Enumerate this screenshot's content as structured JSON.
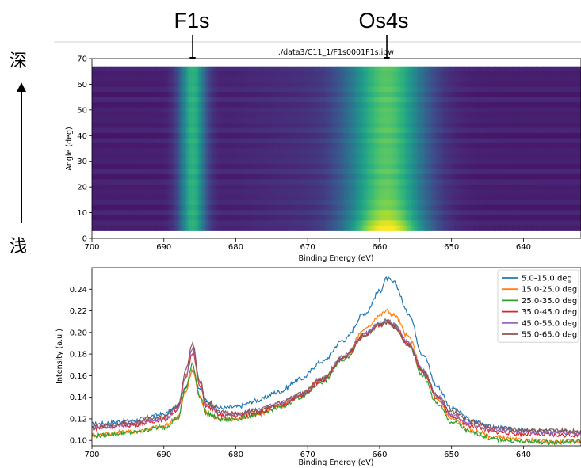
{
  "annotations": {
    "peak_labels": [
      {
        "text": "F1s",
        "energy": 686
      },
      {
        "text": "Os4s",
        "energy": 659
      }
    ],
    "depth_top": "深",
    "depth_bottom": "浅"
  },
  "chart_data": [
    {
      "type": "heatmap",
      "title": "./data3/C11_1/F1s0001F1s.ibw",
      "xlabel": "Binding Energy (eV)",
      "ylabel": "Angle (deg)",
      "xlim": [
        700,
        632
      ],
      "ylim": [
        0,
        70
      ],
      "x_ticks": [
        700,
        690,
        680,
        670,
        660,
        650,
        640
      ],
      "y_ticks": [
        0,
        10,
        20,
        30,
        40,
        50,
        60,
        70
      ],
      "data_y_range": [
        3,
        67
      ],
      "colormap": "viridis",
      "peaks": [
        {
          "energy": 686,
          "width": 1.3,
          "intensity": 0.55
        },
        {
          "energy": 659,
          "width": 3.8,
          "intensity": 0.62
        }
      ]
    },
    {
      "type": "line",
      "xlabel": "Binding Energy (eV)",
      "ylabel": "Intensity (a.u.)",
      "xlim": [
        700,
        632
      ],
      "ylim": [
        0.095,
        0.26
      ],
      "x_ticks": [
        700,
        690,
        680,
        670,
        660,
        650,
        640
      ],
      "y_ticks": [
        0.1,
        0.12,
        0.14,
        0.16,
        0.18,
        0.2,
        0.22,
        0.24
      ],
      "legend_position": "top-right",
      "series": [
        {
          "name": "5.0-15.0 deg",
          "color": "#1f77b4",
          "x": [
            700,
            695,
            690,
            688,
            687,
            686,
            685,
            684,
            682,
            680,
            677,
            674,
            671,
            668,
            665,
            662,
            660,
            659,
            658,
            656,
            654,
            652,
            650,
            647,
            644,
            640,
            636,
            632
          ],
          "y": [
            0.115,
            0.118,
            0.124,
            0.132,
            0.15,
            0.165,
            0.148,
            0.136,
            0.13,
            0.131,
            0.137,
            0.145,
            0.157,
            0.173,
            0.193,
            0.218,
            0.238,
            0.25,
            0.246,
            0.218,
            0.18,
            0.15,
            0.13,
            0.118,
            0.112,
            0.109,
            0.108,
            0.108
          ]
        },
        {
          "name": "15.0-25.0 deg",
          "color": "#ff7f0e",
          "x": [
            700,
            695,
            690,
            688,
            687,
            686,
            685,
            684,
            682,
            680,
            677,
            674,
            671,
            668,
            665,
            662,
            660,
            659,
            658,
            656,
            654,
            652,
            650,
            647,
            644,
            640,
            636,
            632
          ],
          "y": [
            0.105,
            0.108,
            0.113,
            0.122,
            0.145,
            0.165,
            0.14,
            0.125,
            0.119,
            0.12,
            0.124,
            0.131,
            0.141,
            0.156,
            0.177,
            0.203,
            0.216,
            0.22,
            0.216,
            0.196,
            0.165,
            0.138,
            0.12,
            0.109,
            0.103,
            0.1,
            0.099,
            0.099
          ]
        },
        {
          "name": "25.0-35.0 deg",
          "color": "#2ca02c",
          "x": [
            700,
            695,
            690,
            688,
            687,
            686,
            685,
            684,
            682,
            680,
            677,
            674,
            671,
            668,
            665,
            662,
            660,
            659,
            658,
            656,
            654,
            652,
            650,
            647,
            644,
            640,
            636,
            632
          ],
          "y": [
            0.104,
            0.107,
            0.112,
            0.121,
            0.148,
            0.17,
            0.141,
            0.125,
            0.119,
            0.12,
            0.124,
            0.13,
            0.14,
            0.154,
            0.175,
            0.198,
            0.208,
            0.211,
            0.207,
            0.189,
            0.16,
            0.134,
            0.117,
            0.107,
            0.101,
            0.099,
            0.098,
            0.099
          ]
        },
        {
          "name": "35.0-45.0 deg",
          "color": "#d62728",
          "x": [
            700,
            695,
            690,
            688,
            687,
            686,
            685,
            684,
            682,
            680,
            677,
            674,
            671,
            668,
            665,
            662,
            660,
            659,
            658,
            656,
            654,
            652,
            650,
            647,
            644,
            640,
            636,
            632
          ],
          "y": [
            0.111,
            0.114,
            0.119,
            0.129,
            0.158,
            0.182,
            0.15,
            0.131,
            0.123,
            0.123,
            0.126,
            0.132,
            0.141,
            0.156,
            0.176,
            0.198,
            0.207,
            0.21,
            0.206,
            0.189,
            0.163,
            0.139,
            0.122,
            0.113,
            0.108,
            0.106,
            0.105,
            0.105
          ]
        },
        {
          "name": "45.0-55.0 deg",
          "color": "#9467bd",
          "x": [
            700,
            695,
            690,
            688,
            687,
            686,
            685,
            684,
            682,
            680,
            677,
            674,
            671,
            668,
            665,
            662,
            660,
            659,
            658,
            656,
            654,
            652,
            650,
            647,
            644,
            640,
            636,
            632
          ],
          "y": [
            0.112,
            0.115,
            0.12,
            0.13,
            0.16,
            0.186,
            0.152,
            0.133,
            0.125,
            0.125,
            0.128,
            0.134,
            0.143,
            0.158,
            0.178,
            0.199,
            0.208,
            0.211,
            0.207,
            0.19,
            0.165,
            0.141,
            0.124,
            0.115,
            0.11,
            0.108,
            0.107,
            0.107
          ]
        },
        {
          "name": "55.0-65.0 deg",
          "color": "#8c564b",
          "x": [
            700,
            695,
            690,
            688,
            687,
            686,
            685,
            684,
            682,
            680,
            677,
            674,
            671,
            668,
            665,
            662,
            660,
            659,
            658,
            656,
            654,
            652,
            650,
            647,
            644,
            640,
            636,
            632
          ],
          "y": [
            0.113,
            0.116,
            0.122,
            0.132,
            0.164,
            0.19,
            0.155,
            0.135,
            0.126,
            0.125,
            0.128,
            0.134,
            0.143,
            0.157,
            0.177,
            0.198,
            0.207,
            0.209,
            0.205,
            0.189,
            0.165,
            0.142,
            0.126,
            0.117,
            0.112,
            0.11,
            0.109,
            0.109
          ]
        }
      ]
    }
  ]
}
